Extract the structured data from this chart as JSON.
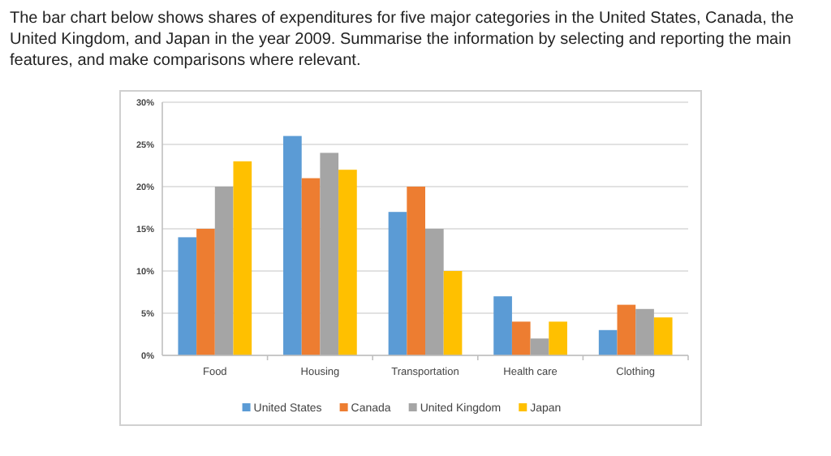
{
  "chart_data": {
    "type": "bar",
    "title": "The bar chart below shows shares of expenditures for five major categories in the United States, Canada, the United Kingdom, and Japan in the year 2009. Summarise the information by selecting and reporting the main features, and make comparisons where relevant.",
    "categories": [
      "Food",
      "Housing",
      "Transportation",
      "Health care",
      "Clothing"
    ],
    "series": [
      {
        "name": "United States",
        "color": "#5b9bd5",
        "values": [
          14,
          26,
          17,
          7,
          3
        ]
      },
      {
        "name": "Canada",
        "color": "#ed7d31",
        "values": [
          15,
          21,
          20,
          4,
          6
        ]
      },
      {
        "name": "United Kingdom",
        "color": "#a5a5a5",
        "values": [
          20,
          24,
          15,
          2,
          5.5
        ]
      },
      {
        "name": "Japan",
        "color": "#ffc000",
        "values": [
          23,
          22,
          10,
          4,
          4.5
        ]
      }
    ],
    "ylim": [
      0,
      30
    ],
    "yticks": [
      {
        "value": 0,
        "label": "0%"
      },
      {
        "value": 5,
        "label": "5%"
      },
      {
        "value": 10,
        "label": "10%"
      },
      {
        "value": 15,
        "label": "15%"
      },
      {
        "value": 20,
        "label": "20%"
      },
      {
        "value": 25,
        "label": "25%"
      },
      {
        "value": 30,
        "label": "30%"
      }
    ],
    "grid": "y",
    "legend": "bottom"
  }
}
